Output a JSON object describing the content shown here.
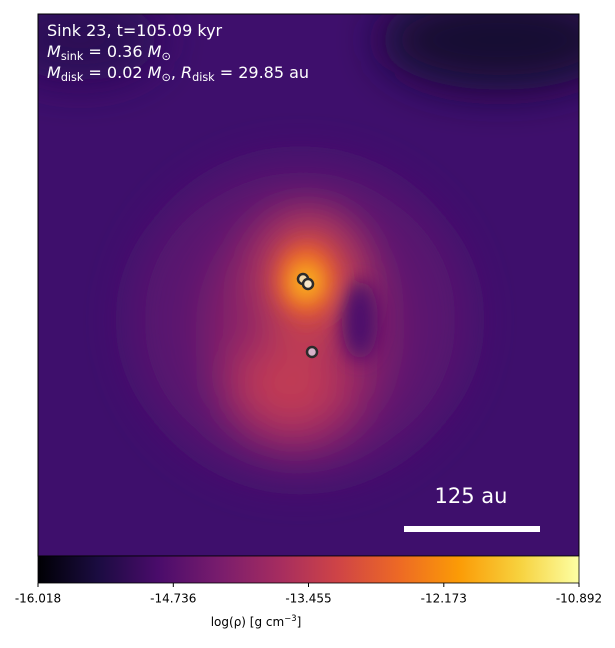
{
  "chart_data": {
    "type": "density-map",
    "annotations": [
      [
        {
          "t": "Sink 23, t=105.09 kyr"
        }
      ],
      [
        {
          "t": "M"
        },
        {
          "t": "sink",
          "sub": true
        },
        {
          "t": " = 0.36 "
        },
        {
          "t": "M"
        },
        {
          "t": "⊙",
          "sub": true
        }
      ],
      [
        {
          "t": "M"
        },
        {
          "t": "disk",
          "sub": true
        },
        {
          "t": " = 0.02 "
        },
        {
          "t": "M"
        },
        {
          "t": "⊙",
          "sub": true
        },
        {
          "t": ", "
        },
        {
          "t": "R"
        },
        {
          "t": "disk",
          "sub": true
        },
        {
          "t": " = 29.85 au"
        }
      ]
    ],
    "scale_bar_label": "125 au",
    "colorbar": {
      "label": [
        {
          "t": "log(ρ) [g cm"
        },
        {
          "t": "−3",
          "sup": true
        },
        {
          "t": "]"
        }
      ],
      "lim": [
        -16.018,
        -10.892
      ],
      "ticks": [
        -16.018,
        -14.736,
        -13.455,
        -12.173,
        -10.892
      ],
      "colors": [
        "#000004",
        "#1b0c41",
        "#4a0c6b",
        "#781c6d",
        "#a52c60",
        "#cf4446",
        "#ed6925",
        "#fb9b06",
        "#f7d13d",
        "#fcffa4"
      ]
    }
  }
}
